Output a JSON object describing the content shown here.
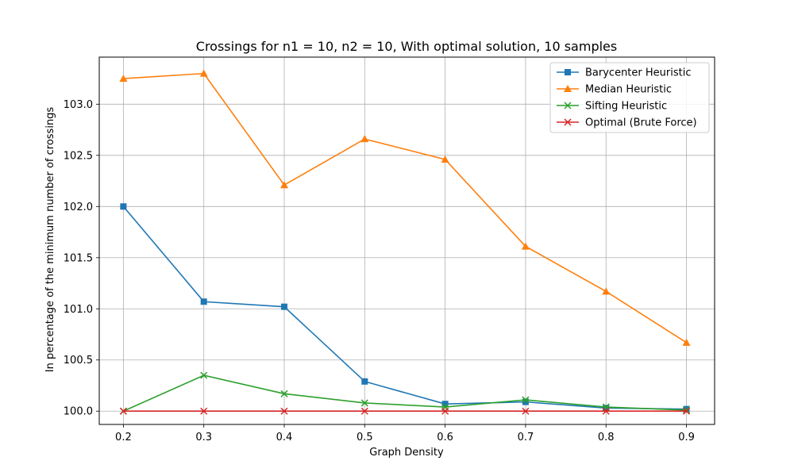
{
  "chart_data": {
    "type": "line",
    "title": "Crossings for n1 = 10, n2 = 10, With optimal solution, 10 samples",
    "xlabel": "Graph Density",
    "ylabel": "In percentage of the minimum number of crossings",
    "x": [
      0.2,
      0.3,
      0.4,
      0.5,
      0.6,
      0.7,
      0.8,
      0.9
    ],
    "xlim": [
      0.17,
      0.935
    ],
    "ylim": [
      99.87,
      103.46
    ],
    "xticks": [
      "0.2",
      "0.3",
      "0.4",
      "0.5",
      "0.6",
      "0.7",
      "0.8",
      "0.9"
    ],
    "yticks": [
      "100.0",
      "100.5",
      "101.0",
      "101.5",
      "102.0",
      "102.5",
      "103.0"
    ],
    "grid": true,
    "legend_position": "top-right",
    "series": [
      {
        "name": "Barycenter Heuristic",
        "color": "#1f77b4",
        "marker": "square",
        "values": [
          102.0,
          101.07,
          101.02,
          100.29,
          100.07,
          100.09,
          100.03,
          100.02
        ]
      },
      {
        "name": "Median Heuristic",
        "color": "#ff7f0e",
        "marker": "triangle",
        "values": [
          103.25,
          103.3,
          102.21,
          102.66,
          102.46,
          101.61,
          101.17,
          100.67
        ]
      },
      {
        "name": "Sifting Heuristic",
        "color": "#2ca02c",
        "marker": "x",
        "values": [
          100.0,
          100.35,
          100.17,
          100.08,
          100.04,
          100.11,
          100.04,
          100.01
        ]
      },
      {
        "name": "Optimal (Brute Force)",
        "color": "#d62728",
        "marker": "x",
        "values": [
          100.0,
          100.0,
          100.0,
          100.0,
          100.0,
          100.0,
          100.0,
          100.0
        ]
      }
    ]
  }
}
